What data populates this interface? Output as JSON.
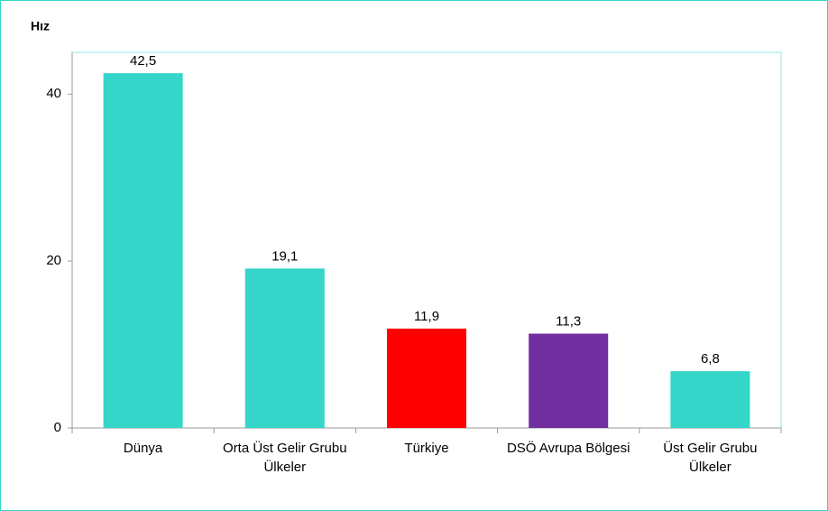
{
  "chart_data": {
    "type": "bar",
    "title": "Hız",
    "categories": [
      "Dünya",
      "Orta Üst Gelir Grubu Ülkeler",
      "Türkiye",
      "DSÖ Avrupa Bölgesi",
      "Üst Gelir Grubu Ülkeler"
    ],
    "values": [
      42.5,
      19.1,
      11.9,
      11.3,
      6.8
    ],
    "value_labels": [
      "42,5",
      "19,1",
      "11,9",
      "11,3",
      "6,8"
    ],
    "colors": [
      "#33d6c8",
      "#33d6c8",
      "#ff0000",
      "#7030a0",
      "#33d6c8"
    ],
    "ylim": [
      0,
      45
    ],
    "yticks": [
      0,
      20,
      40
    ],
    "grid": false
  }
}
